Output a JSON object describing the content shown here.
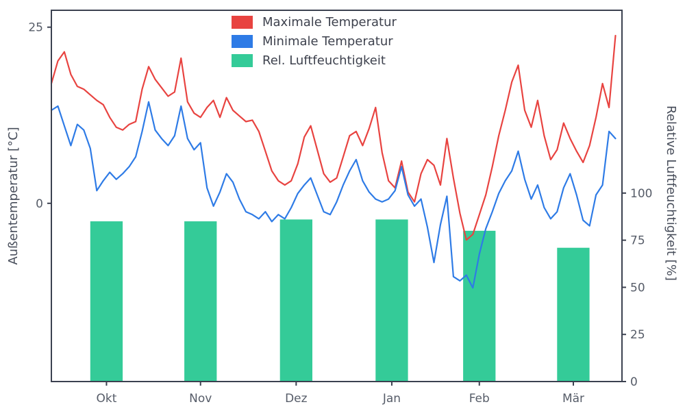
{
  "style": {
    "spine_color": "#3b4150",
    "tick_label_color": "#565c68",
    "axis_label_color": "#474d5a",
    "background": "#ffffff"
  },
  "axes": {
    "left_label": "Außentemperatur [°C]",
    "right_label": "Relative Luftfeuchtigkeit [%]",
    "left_ticks": [
      0,
      25
    ],
    "right_ticks": [
      0,
      25,
      50,
      75,
      100
    ],
    "x_tick_labels": [
      "Okt",
      "Nov",
      "Dez",
      "Jan",
      "Feb",
      "Mär"
    ]
  },
  "legend": {
    "items": [
      {
        "label": "Maximale Temperatur",
        "color": "#e84340"
      },
      {
        "label": "Minimale Temperatur",
        "color": "#2e7be6"
      },
      {
        "label": "Rel. Luftfeuchtigkeit",
        "color": "#34cb98"
      }
    ]
  },
  "chart_data": {
    "type": "line+bar",
    "title": "",
    "xlabel": "",
    "left_ylabel": "Außentemperatur [°C]",
    "right_ylabel": "Relative Luftfeuchtigkeit [%]",
    "x_unit": "day-index (0 = late Sep, 2-day sampling)",
    "x_domain": [
      0,
      176
    ],
    "left_ylim": [
      -25.3,
      27.4
    ],
    "right_ylim": [
      0,
      197
    ],
    "grid": false,
    "legend_position": "upper center-left",
    "month_ticks": {
      "labels": [
        "Okt",
        "Nov",
        "Dez",
        "Jan",
        "Feb",
        "Mär"
      ],
      "positions": [
        17,
        46,
        75.5,
        105,
        132,
        161
      ]
    },
    "series": [
      {
        "name": "Maximale Temperatur",
        "type": "line",
        "axis": "left",
        "color": "#e84340",
        "x_start": 0,
        "x_step": 2,
        "values": [
          17.0,
          20.2,
          21.5,
          18.3,
          16.6,
          16.2,
          15.4,
          14.6,
          14.0,
          12.2,
          10.8,
          10.4,
          11.2,
          11.6,
          16.2,
          19.4,
          17.6,
          16.4,
          15.2,
          15.8,
          20.6,
          14.4,
          12.8,
          12.2,
          13.6,
          14.6,
          12.2,
          15.0,
          13.2,
          12.4,
          11.6,
          11.8,
          10.2,
          7.4,
          4.6,
          3.2,
          2.6,
          3.2,
          5.6,
          9.4,
          11.0,
          7.6,
          4.2,
          3.0,
          3.6,
          6.6,
          9.6,
          10.2,
          8.2,
          10.6,
          13.6,
          7.2,
          3.2,
          2.2,
          6.0,
          1.6,
          0.2,
          4.2,
          6.2,
          5.4,
          2.6,
          9.2,
          3.6,
          -1.4,
          -5.2,
          -4.4,
          -1.6,
          1.2,
          5.2,
          9.6,
          13.2,
          17.2,
          19.6,
          13.2,
          10.8,
          14.6,
          9.6,
          6.2,
          7.6,
          11.4,
          9.2,
          7.4,
          5.8,
          8.2,
          12.2,
          17.0,
          13.6,
          23.8
        ]
      },
      {
        "name": "Minimale Temperatur",
        "type": "line",
        "axis": "left",
        "color": "#2e7be6",
        "x_start": 0,
        "x_step": 2,
        "values": [
          13.2,
          13.8,
          11.0,
          8.2,
          11.2,
          10.4,
          7.8,
          1.8,
          3.2,
          4.4,
          3.4,
          4.2,
          5.2,
          6.6,
          10.2,
          14.4,
          10.4,
          9.2,
          8.2,
          9.6,
          13.8,
          9.2,
          7.6,
          8.6,
          2.2,
          -0.4,
          1.6,
          4.2,
          3.0,
          0.6,
          -1.2,
          -1.6,
          -2.2,
          -1.2,
          -2.6,
          -1.6,
          -2.2,
          -0.6,
          1.4,
          2.6,
          3.6,
          1.2,
          -1.2,
          -1.6,
          0.2,
          2.6,
          4.6,
          6.2,
          3.2,
          1.6,
          0.6,
          0.2,
          0.6,
          1.8,
          5.2,
          1.2,
          -0.4,
          0.6,
          -3.4,
          -8.4,
          -3.0,
          1.0,
          -10.4,
          -11.0,
          -10.2,
          -12.0,
          -7.2,
          -3.6,
          -1.2,
          1.4,
          3.2,
          4.6,
          7.4,
          3.4,
          0.6,
          2.6,
          -0.6,
          -2.2,
          -1.2,
          2.2,
          4.2,
          1.2,
          -2.4,
          -3.2,
          1.2,
          2.6,
          10.2,
          9.2
        ]
      },
      {
        "name": "Rel. Luftfeuchtigkeit",
        "type": "bar",
        "axis": "right",
        "color": "#34cb98",
        "categories": [
          "Okt",
          "Nov",
          "Dez",
          "Jan",
          "Feb",
          "Mär"
        ],
        "values": [
          85,
          85,
          86,
          86,
          80,
          71
        ],
        "bar_width_days": 10
      }
    ]
  }
}
